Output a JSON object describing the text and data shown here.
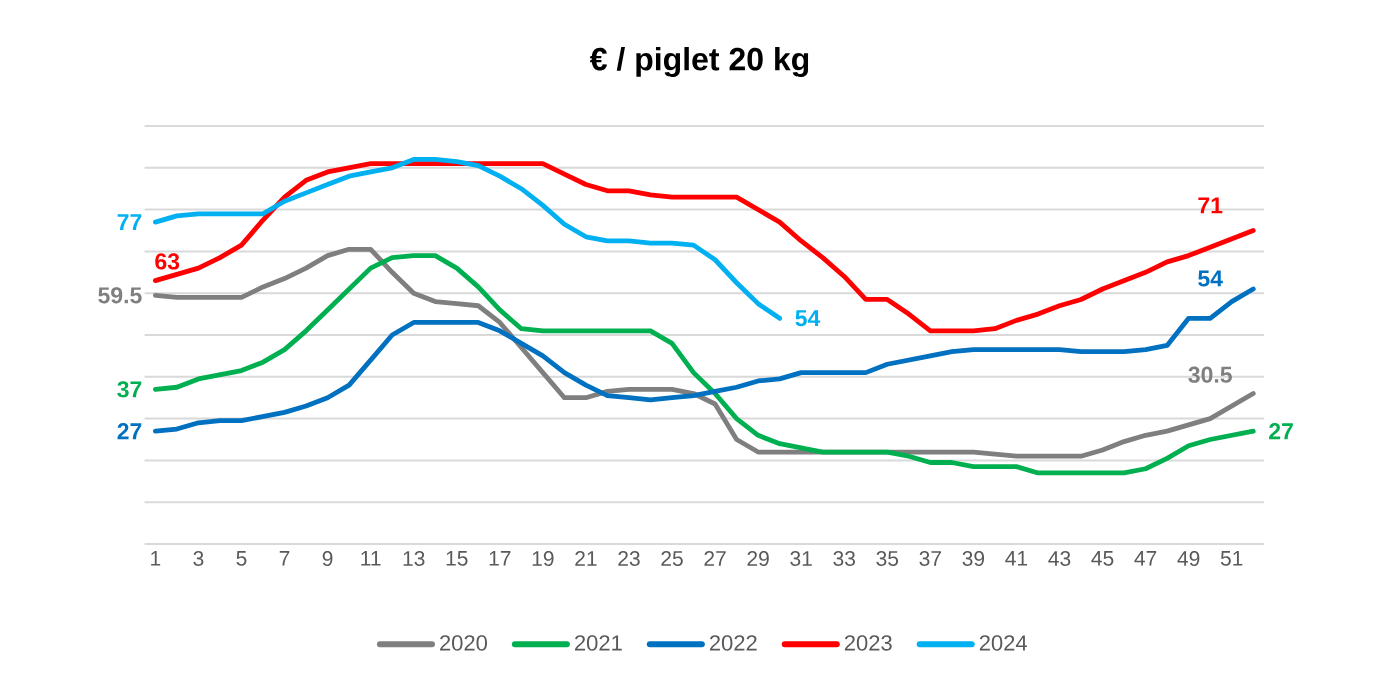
{
  "chart_data": {
    "type": "line",
    "title": "€ / piglet 20 kg",
    "x": [
      1,
      2,
      3,
      4,
      5,
      6,
      7,
      8,
      9,
      10,
      11,
      12,
      13,
      14,
      15,
      16,
      17,
      18,
      19,
      20,
      21,
      22,
      23,
      24,
      25,
      26,
      27,
      28,
      29,
      30,
      31,
      32,
      33,
      34,
      35,
      36,
      37,
      38,
      39,
      40,
      41,
      42,
      43,
      44,
      45,
      46,
      47,
      48,
      49,
      50,
      51,
      52
    ],
    "xlim": [
      0.5,
      52.5
    ],
    "xticks": [
      1,
      3,
      5,
      7,
      9,
      11,
      13,
      15,
      17,
      19,
      21,
      23,
      25,
      27,
      29,
      31,
      33,
      35,
      37,
      39,
      41,
      43,
      45,
      47,
      49,
      51
    ],
    "ylim": [
      0,
      100
    ],
    "yticks": [
      {
        "value": 0,
        "label": null
      },
      {
        "value": 10,
        "label": null
      },
      {
        "value": 20,
        "label": null
      },
      {
        "value": 30,
        "label": null
      },
      {
        "value": 40,
        "label": null
      },
      {
        "value": 50,
        "label": null
      },
      {
        "value": 60,
        "label": null
      },
      {
        "value": 70,
        "label": null
      },
      {
        "value": 80,
        "label": null
      },
      {
        "value": 90,
        "label": null
      },
      {
        "value": 100,
        "label": null
      }
    ],
    "tick_labels": "x",
    "grid": "y",
    "legend": "bottom",
    "series": [
      {
        "name": "2020",
        "color": "#7f7f7f",
        "values": [
          59.5,
          59,
          59,
          59,
          59,
          61.5,
          63.5,
          66,
          69,
          70.5,
          70.5,
          65,
          60,
          58,
          57.5,
          57,
          53,
          47,
          41,
          35,
          35,
          36.5,
          37,
          37,
          37,
          36,
          33.5,
          25,
          22,
          22,
          22,
          22,
          22,
          22,
          22,
          22,
          22,
          22,
          22,
          21.5,
          21,
          21,
          21,
          21,
          22.5,
          24.5,
          26,
          27,
          28.5,
          30,
          33,
          36
        ],
        "value_labels": [
          "59.5",
          null,
          null,
          null,
          null,
          null,
          null,
          null,
          null,
          null,
          null,
          null,
          null,
          null,
          null,
          null,
          null,
          null,
          null,
          null,
          null,
          null,
          null,
          null,
          null,
          null,
          null,
          null,
          null,
          null,
          null,
          null,
          null,
          null,
          null,
          null,
          null,
          null,
          null,
          null,
          null,
          null,
          null,
          null,
          null,
          null,
          null,
          null,
          null,
          null,
          null,
          null
        ]
      },
      {
        "name": "2021",
        "color": "#00b050",
        "values": [
          37,
          37.5,
          39.5,
          40.5,
          41.5,
          43.5,
          46.5,
          51,
          56,
          61,
          66,
          68.5,
          69,
          69,
          66,
          61.5,
          56,
          51.5,
          51,
          51,
          51,
          51,
          51,
          51,
          48,
          41,
          36,
          30,
          26,
          24,
          23,
          22,
          22,
          22,
          22,
          21,
          19.5,
          19.5,
          18.5,
          18.5,
          18.5,
          17,
          17,
          17,
          17,
          17,
          18,
          20.5,
          23.5,
          25,
          26,
          27
        ],
        "value_labels": [
          "37",
          null,
          null,
          null,
          null,
          null,
          null,
          null,
          null,
          null,
          null,
          null,
          null,
          null,
          null,
          null,
          null,
          null,
          null,
          null,
          null,
          null,
          null,
          null,
          null,
          null,
          null,
          null,
          null,
          null,
          null,
          null,
          null,
          null,
          null,
          null,
          null,
          null,
          null,
          null,
          null,
          null,
          null,
          null,
          null,
          null,
          null,
          null,
          null,
          null,
          null,
          "27"
        ]
      },
      {
        "name": "2022",
        "color": "#0070c0",
        "values": [
          27,
          27.5,
          29,
          29.5,
          29.5,
          30.5,
          31.5,
          33,
          35,
          38,
          44,
          50,
          53,
          53,
          53,
          53,
          51,
          48,
          45,
          41,
          38,
          35.5,
          35,
          34.5,
          35,
          35.5,
          36.5,
          37.5,
          39,
          39.5,
          41,
          41,
          41,
          41,
          43,
          44,
          45,
          46,
          46.5,
          46.5,
          46.5,
          46.5,
          46.5,
          46,
          46,
          46,
          46.5,
          47.5,
          54,
          54,
          58,
          61
        ],
        "value_labels": [
          "27",
          null,
          null,
          null,
          null,
          null,
          null,
          null,
          null,
          null,
          null,
          null,
          null,
          null,
          null,
          null,
          null,
          null,
          null,
          null,
          null,
          null,
          null,
          null,
          null,
          null,
          null,
          null,
          null,
          null,
          null,
          null,
          null,
          null,
          null,
          null,
          null,
          null,
          null,
          null,
          null,
          null,
          null,
          null,
          null,
          null,
          null,
          null,
          null,
          null,
          null,
          null
        ]
      },
      {
        "name": "2023",
        "color": "#ff0000",
        "values": [
          63,
          64.5,
          66,
          68.5,
          71.5,
          77.5,
          83,
          87,
          89,
          90,
          91,
          91,
          91,
          91,
          91,
          91,
          91,
          91,
          91,
          88.5,
          86,
          84.5,
          84.5,
          83.5,
          83,
          83,
          83,
          83,
          80,
          77,
          72.5,
          68.5,
          64,
          58.5,
          58.5,
          55,
          51,
          51,
          51,
          51.5,
          53.5,
          55,
          57,
          58.5,
          61,
          63,
          65,
          67.5,
          69,
          71,
          73,
          75
        ],
        "value_labels": [
          "63",
          null,
          null,
          null,
          null,
          null,
          null,
          null,
          null,
          null,
          null,
          null,
          null,
          null,
          null,
          null,
          null,
          null,
          null,
          null,
          null,
          null,
          null,
          null,
          null,
          null,
          null,
          null,
          null,
          null,
          null,
          null,
          null,
          null,
          null,
          null,
          null,
          null,
          null,
          null,
          null,
          null,
          null,
          null,
          null,
          null,
          null,
          null,
          null,
          null,
          null,
          null
        ]
      },
      {
        "name": "2024",
        "color": "#00b0f0",
        "values": [
          77,
          78.5,
          79,
          79,
          79,
          79,
          82,
          84,
          86,
          88,
          89,
          90,
          92,
          92,
          91.5,
          90.5,
          88,
          85,
          81,
          76.5,
          73.5,
          72.5,
          72.5,
          72,
          72,
          71.5,
          68,
          62.5,
          57.5,
          54,
          null,
          null,
          null,
          null,
          null,
          null,
          null,
          null,
          null,
          null,
          null,
          null,
          null,
          null,
          null,
          null,
          null,
          null,
          null,
          null,
          null,
          null
        ],
        "value_labels": [
          "77",
          null,
          null,
          null,
          null,
          null,
          null,
          null,
          null,
          null,
          null,
          null,
          null,
          null,
          null,
          null,
          null,
          null,
          null,
          null,
          null,
          null,
          null,
          null,
          null,
          null,
          null,
          null,
          null,
          "54",
          null,
          null,
          null,
          null,
          null,
          null,
          null,
          null,
          null,
          null,
          null,
          null,
          null,
          null,
          null,
          null,
          null,
          null,
          null,
          null,
          null,
          null
        ]
      }
    ],
    "annotations": [
      "71",
      "54",
      "30.5"
    ]
  }
}
